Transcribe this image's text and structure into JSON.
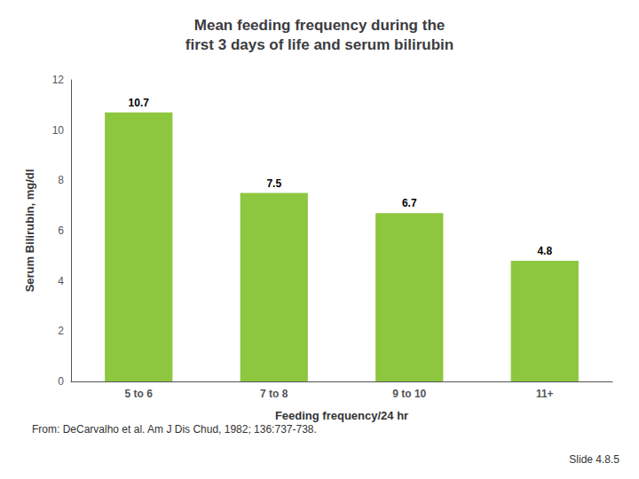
{
  "chart_data": {
    "type": "bar",
    "title": "Mean feeding frequency during the\nfirst 3 days of life and serum bilirubin",
    "xlabel": "Feeding frequency/24 hr",
    "ylabel": "Serum Bilirubin, mg/dl",
    "categories": [
      "5 to 6",
      "7 to 8",
      "9 to 10",
      "11+"
    ],
    "values": [
      10.7,
      7.5,
      6.7,
      4.8
    ],
    "color": "#8DC63F",
    "ylim": [
      0,
      12
    ],
    "yticks": [
      0,
      2,
      4,
      6,
      8,
      10,
      12
    ],
    "grid": false,
    "data_labels": true,
    "annotations": [
      "From: DeCarvalho et al. Am J Dis Chud, 1982; 136:737-738.",
      "Slide 4.8.5"
    ]
  }
}
